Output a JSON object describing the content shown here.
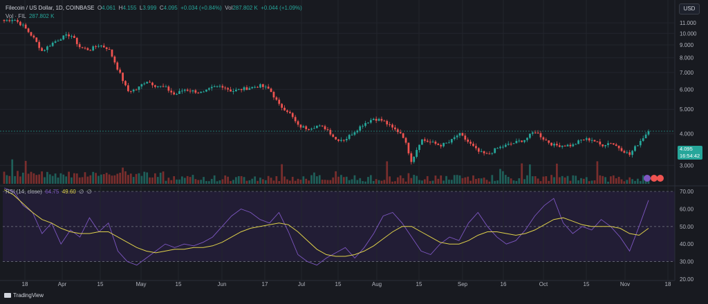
{
  "header": {
    "symbol": "Filecoin / US Dollar, 1D, COINBASE",
    "open_label": "O",
    "open": "4.061",
    "high_label": "H",
    "high": "4.155",
    "low_label": "L",
    "low": "3.999",
    "close_label": "C",
    "close": "4.095",
    "change": "+0.034 (+0.84%)",
    "vol_label": "Vol",
    "vol": "287.802 K",
    "vol_change": "+0.044 (+1.09%)"
  },
  "volume_legend": {
    "label": "Vol · FIL",
    "value": "287.802 K"
  },
  "rsi_legend": {
    "label": "RSI (14, close)",
    "rsi": "64.75",
    "ma": "49.60",
    "extra1": "∅",
    "extra2": "∅"
  },
  "currency_button": "USD",
  "price_tag": {
    "price": "4.095",
    "countdown": "16:54:42"
  },
  "footer": {
    "brand": "TradingView"
  },
  "colors": {
    "up": "#26a69a",
    "down": "#ef5350",
    "rsi": "#7e57c2",
    "rsi_ma": "#e0d24a",
    "background": "#181a20"
  },
  "chart_data": [
    {
      "type": "candlestick",
      "title": "Filecoin / US Dollar, 1D, COINBASE",
      "y_ticks": [
        "11.000",
        "10.000",
        "9.000",
        "8.000",
        "7.000",
        "6.000",
        "5.000",
        "4.000",
        "3.000"
      ],
      "y_scale": "log",
      "ylim": [
        2.6,
        11.8
      ],
      "x_ticks": [
        "18",
        "Apr",
        "15",
        "May",
        "15",
        "Jun",
        "17",
        "Jul",
        "15",
        "Aug",
        "15",
        "Sep",
        "16",
        "Oct",
        "15",
        "Nov",
        "18"
      ],
      "close_series": [
        {
          "x": "Mar 09",
          "y": 11.2
        },
        {
          "x": "Mar 12",
          "y": 11.4
        },
        {
          "x": "Mar 15",
          "y": 10.7
        },
        {
          "x": "Mar 18",
          "y": 9.7
        },
        {
          "x": "Mar 20",
          "y": 8.5
        },
        {
          "x": "Mar 23",
          "y": 9.1
        },
        {
          "x": "Mar 26",
          "y": 9.6
        },
        {
          "x": "Mar 30",
          "y": 9.9
        },
        {
          "x": "Apr 02",
          "y": 8.8
        },
        {
          "x": "Apr 05",
          "y": 8.6
        },
        {
          "x": "Apr 08",
          "y": 9.0
        },
        {
          "x": "Apr 10",
          "y": 8.7
        },
        {
          "x": "Apr 12",
          "y": 7.2
        },
        {
          "x": "Apr 13",
          "y": 5.9
        },
        {
          "x": "Apr 16",
          "y": 6.0
        },
        {
          "x": "Apr 20",
          "y": 6.5
        },
        {
          "x": "Apr 24",
          "y": 6.2
        },
        {
          "x": "Apr 28",
          "y": 6.1
        },
        {
          "x": "May 02",
          "y": 5.7
        },
        {
          "x": "May 06",
          "y": 6.0
        },
        {
          "x": "May 10",
          "y": 5.9
        },
        {
          "x": "May 14",
          "y": 5.8
        },
        {
          "x": "May 18",
          "y": 6.1
        },
        {
          "x": "May 22",
          "y": 6.2
        },
        {
          "x": "May 26",
          "y": 5.9
        },
        {
          "x": "May 30",
          "y": 6.0
        },
        {
          "x": "Jun 03",
          "y": 6.1
        },
        {
          "x": "Jun 07",
          "y": 6.2
        },
        {
          "x": "Jun 10",
          "y": 6.0
        },
        {
          "x": "Jun 13",
          "y": 5.2
        },
        {
          "x": "Jun 16",
          "y": 4.9
        },
        {
          "x": "Jun 18",
          "y": 4.3
        },
        {
          "x": "Jun 22",
          "y": 4.2
        },
        {
          "x": "Jun 26",
          "y": 4.3
        },
        {
          "x": "Jun 30",
          "y": 4.2
        },
        {
          "x": "Jul 04",
          "y": 3.8
        },
        {
          "x": "Jul 08",
          "y": 3.8
        },
        {
          "x": "Jul 12",
          "y": 4.1
        },
        {
          "x": "Jul 16",
          "y": 4.4
        },
        {
          "x": "Jul 20",
          "y": 4.6
        },
        {
          "x": "Jul 24",
          "y": 4.5
        },
        {
          "x": "Jul 28",
          "y": 4.2
        },
        {
          "x": "Aug 02",
          "y": 4.0
        },
        {
          "x": "Aug 05",
          "y": 3.1
        },
        {
          "x": "Aug 08",
          "y": 3.8
        },
        {
          "x": "Aug 12",
          "y": 3.7
        },
        {
          "x": "Aug 16",
          "y": 3.6
        },
        {
          "x": "Aug 20",
          "y": 3.7
        },
        {
          "x": "Aug 24",
          "y": 4.0
        },
        {
          "x": "Aug 28",
          "y": 3.7
        },
        {
          "x": "Sep 02",
          "y": 3.4
        },
        {
          "x": "Sep 06",
          "y": 3.3
        },
        {
          "x": "Sep 10",
          "y": 3.5
        },
        {
          "x": "Sep 14",
          "y": 3.6
        },
        {
          "x": "Sep 18",
          "y": 3.7
        },
        {
          "x": "Sep 22",
          "y": 3.8
        },
        {
          "x": "Sep 27",
          "y": 4.1
        },
        {
          "x": "Sep 30",
          "y": 3.8
        },
        {
          "x": "Oct 04",
          "y": 3.6
        },
        {
          "x": "Oct 08",
          "y": 3.6
        },
        {
          "x": "Oct 12",
          "y": 3.6
        },
        {
          "x": "Oct 16",
          "y": 3.8
        },
        {
          "x": "Oct 20",
          "y": 3.8
        },
        {
          "x": "Oct 24",
          "y": 3.6
        },
        {
          "x": "Oct 28",
          "y": 3.7
        },
        {
          "x": "Nov 01",
          "y": 3.5
        },
        {
          "x": "Nov 04",
          "y": 3.3
        },
        {
          "x": "Nov 07",
          "y": 3.7
        },
        {
          "x": "Nov 10",
          "y": 4.1
        }
      ],
      "last_price": 4.095
    },
    {
      "type": "bar",
      "title": "Vol · FIL",
      "last_value": "287.802 K"
    },
    {
      "type": "line",
      "title": "RSI (14, close)",
      "y_ticks": [
        "70.00",
        "60.00",
        "50.00",
        "40.00",
        "30.00",
        "20.00"
      ],
      "ylim": [
        20,
        72
      ],
      "bands": [
        70,
        50,
        30
      ],
      "series": [
        {
          "name": "RSI (14, close)",
          "values": [
            72,
            70,
            62,
            58,
            46,
            52,
            40,
            48,
            44,
            55,
            47,
            52,
            36,
            30,
            28,
            32,
            36,
            40,
            38,
            40,
            39,
            41,
            44,
            50,
            56,
            60,
            58,
            54,
            52,
            58,
            47,
            34,
            30,
            28,
            32,
            35,
            38,
            32,
            38,
            46,
            56,
            58,
            52,
            44,
            36,
            34,
            40,
            44,
            42,
            52,
            58,
            50,
            44,
            40,
            42,
            48,
            56,
            62,
            66,
            52,
            46,
            50,
            48,
            54,
            50,
            44,
            36,
            50,
            65
          ]
        },
        {
          "name": "RSI MA",
          "values": [
            71,
            68,
            63,
            58,
            54,
            52,
            49,
            47,
            46,
            46,
            47,
            47,
            44,
            41,
            38,
            36,
            35,
            36,
            37,
            37,
            38,
            38,
            39,
            41,
            44,
            47,
            49,
            50,
            51,
            52,
            51,
            47,
            42,
            37,
            34,
            33,
            33,
            34,
            36,
            39,
            43,
            47,
            50,
            50,
            47,
            44,
            41,
            40,
            40,
            42,
            45,
            47,
            47,
            46,
            45,
            46,
            48,
            51,
            54,
            55,
            53,
            51,
            50,
            50,
            50,
            49,
            46,
            45,
            49
          ]
        }
      ],
      "last_values": {
        "rsi": 64.75,
        "ma": 49.6
      }
    }
  ]
}
